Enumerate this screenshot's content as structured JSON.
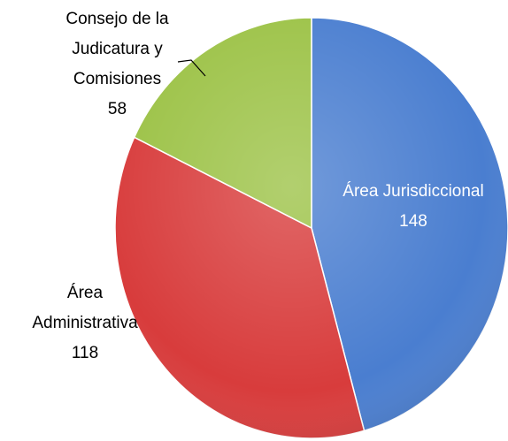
{
  "chart_data": {
    "type": "pie",
    "categories": [
      "Área Jurisdiccional",
      "Área Administrativa",
      "Consejo de la Judicatura y Comisiones"
    ],
    "values": [
      148,
      118,
      58
    ],
    "colors": [
      "#4a7ed0",
      "#d83c3c",
      "#9cc246"
    ]
  }
}
